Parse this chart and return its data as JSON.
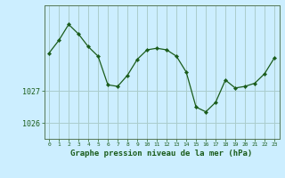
{
  "x": [
    0,
    1,
    2,
    3,
    4,
    5,
    6,
    7,
    8,
    9,
    10,
    11,
    12,
    13,
    14,
    15,
    16,
    17,
    18,
    19,
    20,
    21,
    22,
    23
  ],
  "y": [
    1028.2,
    1028.6,
    1029.1,
    1028.8,
    1028.4,
    1028.1,
    1027.2,
    1027.15,
    1027.5,
    1028.0,
    1028.3,
    1028.35,
    1028.3,
    1028.1,
    1027.6,
    1026.5,
    1026.35,
    1026.65,
    1027.35,
    1027.1,
    1027.15,
    1027.25,
    1027.55,
    1028.05
  ],
  "line_color": "#1a5c1a",
  "marker": "D",
  "marker_size": 2.2,
  "bg_color": "#cceeff",
  "grid_color": "#aacccc",
  "axis_color": "#557755",
  "tick_color": "#1a5c1a",
  "label_color": "#1a5c1a",
  "yticks": [
    1026,
    1027
  ],
  "ylim": [
    1025.5,
    1029.7
  ],
  "xlim": [
    -0.5,
    23.5
  ],
  "xlabel": "Graphe pression niveau de la mer (hPa)",
  "xlabel_fontsize": 6.5,
  "xtick_labels": [
    "0",
    "1",
    "2",
    "3",
    "4",
    "5",
    "6",
    "7",
    "8",
    "9",
    "10",
    "11",
    "12",
    "13",
    "14",
    "15",
    "16",
    "17",
    "18",
    "19",
    "20",
    "21",
    "22",
    "23"
  ]
}
